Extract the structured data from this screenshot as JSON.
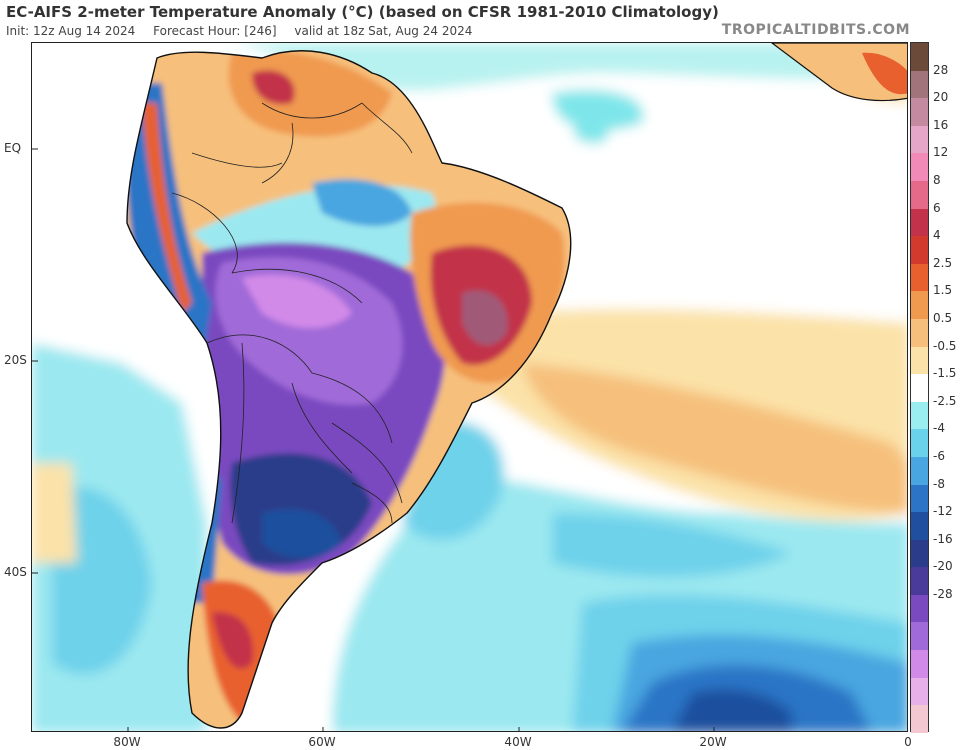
{
  "header": {
    "title": "EC-AIFS 2-meter Temperature Anomaly (°C) (based on CFSR 1981-2010 Climatology)",
    "init": "Init: 12z Aug 14 2024",
    "forecast_hour": "Forecast Hour: [246]",
    "valid": "valid at 18z Sat, Aug 24 2024",
    "brand": "TROPICALTIDBITS.COM"
  },
  "lat_labels": [
    "EQ",
    "20S",
    "40S"
  ],
  "lon_labels": [
    "80W",
    "60W",
    "40W",
    "20W",
    "0"
  ],
  "colorbar": {
    "labels": [
      "28",
      "20",
      "16",
      "12",
      "8",
      "6",
      "4",
      "2.5",
      "1.5",
      "0.5",
      "-0.5",
      "-1.5",
      "-2.5",
      "-4",
      "-6",
      "-8",
      "-12",
      "-16",
      "-20",
      "-28"
    ],
    "colors": [
      "#6b4a3a",
      "#a0747a",
      "#c48aa0",
      "#e6a6c8",
      "#f28ab8",
      "#e56a8a",
      "#c2324a",
      "#d23a2e",
      "#e8602e",
      "#f09a50",
      "#f6c07c",
      "#fbe2a8",
      "#ffffff",
      "#9aeef0",
      "#6ad2ea",
      "#4aa6e0",
      "#2c74c6",
      "#1f4f9e",
      "#2a3c8a",
      "#4a3a9a",
      "#7a4ac0",
      "#a06ad8",
      "#d28ae8",
      "#e8b0e8",
      "#f3c8d0"
    ]
  }
}
